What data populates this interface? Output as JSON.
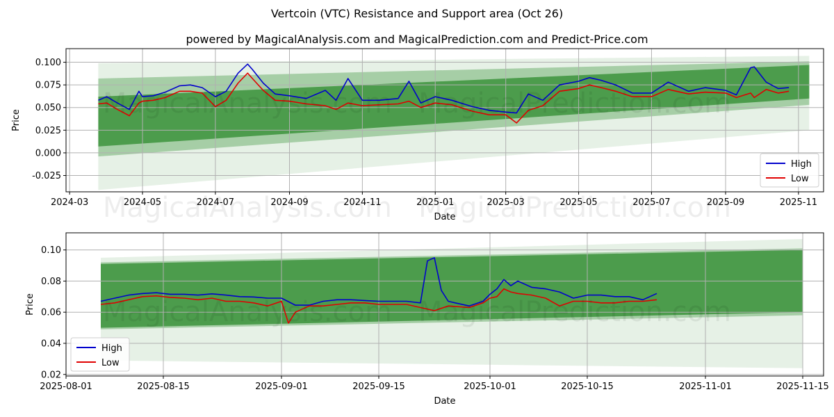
{
  "title": "Vertcoin (VTC) Resistance and Support area (Oct 26)",
  "subtitle": "powered by MagicalAnalysis.com and MagicalPrediction.com and Predict-Price.com",
  "watermark": "MagicalAnalysis.com   MagicalPrediction.com",
  "colors": {
    "high": "#0000cc",
    "low": "#e00000",
    "band": "#2e8b2e",
    "band_light": "#c8e6c8",
    "grid": "#b0b0b0"
  },
  "chart_data": [
    {
      "type": "line",
      "xlabel": "Date",
      "ylabel": "Price",
      "xlim": [
        "2024-02-27",
        "2025-11-22"
      ],
      "ylim": [
        -0.043,
        0.115
      ],
      "x_ticks": [
        "2024-03",
        "2024-05",
        "2024-07",
        "2024-09",
        "2024-11",
        "2025-01",
        "2025-03",
        "2025-05",
        "2025-07",
        "2025-09",
        "2025-11"
      ],
      "y_ticks": [
        "-0.025",
        "0.000",
        "0.025",
        "0.050",
        "0.075",
        "0.100"
      ],
      "legend": {
        "position": "lower-right",
        "entries": [
          "High",
          "Low"
        ]
      },
      "bands": {
        "x": [
          "2024-03-25",
          "2025-11-10"
        ],
        "outer_upper": [
          0.099,
          0.107
        ],
        "outer_lower": [
          -0.041,
          0.025
        ],
        "mid_upper": [
          0.082,
          0.101
        ],
        "mid_lower": [
          -0.004,
          0.053
        ],
        "inner_upper": [
          0.062,
          0.097
        ],
        "inner_lower": [
          0.007,
          0.06
        ]
      },
      "series": [
        {
          "name": "High",
          "x": [
            "2024-03-25",
            "2024-04-01",
            "2024-04-10",
            "2024-04-20",
            "2024-04-28",
            "2024-05-01",
            "2024-05-10",
            "2024-05-20",
            "2024-06-01",
            "2024-06-10",
            "2024-06-20",
            "2024-07-01",
            "2024-07-10",
            "2024-07-20",
            "2024-07-28",
            "2024-08-01",
            "2024-08-10",
            "2024-08-20",
            "2024-09-01",
            "2024-09-15",
            "2024-10-01",
            "2024-10-10",
            "2024-10-20",
            "2024-11-01",
            "2024-11-15",
            "2024-12-01",
            "2024-12-10",
            "2024-12-20",
            "2025-01-01",
            "2025-01-15",
            "2025-02-01",
            "2025-02-15",
            "2025-03-01",
            "2025-03-10",
            "2025-03-20",
            "2025-04-01",
            "2025-04-15",
            "2025-05-01",
            "2025-05-10",
            "2025-05-20",
            "2025-06-01",
            "2025-06-15",
            "2025-07-01",
            "2025-07-15",
            "2025-08-01",
            "2025-08-15",
            "2025-09-01",
            "2025-09-10",
            "2025-09-22",
            "2025-09-25",
            "2025-10-05",
            "2025-10-15",
            "2025-10-24"
          ],
          "values": [
            0.058,
            0.062,
            0.055,
            0.048,
            0.068,
            0.062,
            0.063,
            0.067,
            0.074,
            0.075,
            0.072,
            0.062,
            0.068,
            0.088,
            0.098,
            0.092,
            0.077,
            0.065,
            0.063,
            0.06,
            0.069,
            0.058,
            0.082,
            0.058,
            0.058,
            0.06,
            0.079,
            0.055,
            0.062,
            0.058,
            0.051,
            0.047,
            0.045,
            0.044,
            0.065,
            0.058,
            0.075,
            0.079,
            0.083,
            0.08,
            0.075,
            0.066,
            0.066,
            0.078,
            0.068,
            0.072,
            0.069,
            0.064,
            0.094,
            0.095,
            0.078,
            0.071,
            0.072
          ]
        },
        {
          "name": "Low",
          "x": [
            "2024-03-25",
            "2024-04-01",
            "2024-04-10",
            "2024-04-20",
            "2024-04-28",
            "2024-05-01",
            "2024-05-10",
            "2024-05-20",
            "2024-06-01",
            "2024-06-10",
            "2024-06-20",
            "2024-07-01",
            "2024-07-10",
            "2024-07-20",
            "2024-07-28",
            "2024-08-01",
            "2024-08-10",
            "2024-08-20",
            "2024-09-01",
            "2024-09-15",
            "2024-10-01",
            "2024-10-10",
            "2024-10-20",
            "2024-11-01",
            "2024-11-15",
            "2024-12-01",
            "2024-12-10",
            "2024-12-20",
            "2025-01-01",
            "2025-01-15",
            "2025-02-01",
            "2025-02-15",
            "2025-03-01",
            "2025-03-10",
            "2025-03-20",
            "2025-04-01",
            "2025-04-15",
            "2025-05-01",
            "2025-05-10",
            "2025-05-20",
            "2025-06-01",
            "2025-06-15",
            "2025-07-01",
            "2025-07-15",
            "2025-08-01",
            "2025-08-15",
            "2025-09-01",
            "2025-09-10",
            "2025-09-22",
            "2025-09-25",
            "2025-10-05",
            "2025-10-15",
            "2025-10-24"
          ],
          "values": [
            0.054,
            0.055,
            0.048,
            0.041,
            0.055,
            0.057,
            0.058,
            0.061,
            0.068,
            0.068,
            0.066,
            0.051,
            0.058,
            0.077,
            0.088,
            0.082,
            0.069,
            0.058,
            0.057,
            0.054,
            0.052,
            0.048,
            0.055,
            0.052,
            0.053,
            0.054,
            0.057,
            0.05,
            0.055,
            0.053,
            0.046,
            0.042,
            0.042,
            0.033,
            0.047,
            0.052,
            0.068,
            0.071,
            0.075,
            0.072,
            0.068,
            0.062,
            0.062,
            0.07,
            0.065,
            0.067,
            0.066,
            0.061,
            0.066,
            0.061,
            0.07,
            0.066,
            0.068
          ]
        }
      ]
    },
    {
      "type": "line",
      "xlabel": "Date",
      "ylabel": "Price",
      "xlim": [
        "2025-08-01",
        "2025-11-18"
      ],
      "ylim": [
        0.019,
        0.111
      ],
      "x_ticks": [
        "2025-08-01",
        "2025-08-15",
        "2025-09-01",
        "2025-09-15",
        "2025-10-01",
        "2025-10-15",
        "2025-11-01",
        "2025-11-15"
      ],
      "y_ticks": [
        "0.02",
        "0.04",
        "0.06",
        "0.08",
        "0.10"
      ],
      "legend": {
        "position": "lower-left",
        "entries": [
          "High",
          "Low"
        ]
      },
      "bands": {
        "x": [
          "2025-08-06",
          "2025-11-15"
        ],
        "outer_upper": [
          0.095,
          0.107
        ],
        "outer_lower": [
          0.029,
          0.024
        ],
        "mid_upper": [
          0.092,
          0.101
        ],
        "mid_lower": [
          0.049,
          0.058
        ],
        "inner_upper": [
          0.091,
          0.1
        ],
        "inner_lower": [
          0.05,
          0.06
        ]
      },
      "series": [
        {
          "name": "High",
          "x": [
            "2025-08-06",
            "2025-08-08",
            "2025-08-10",
            "2025-08-12",
            "2025-08-14",
            "2025-08-16",
            "2025-08-18",
            "2025-08-20",
            "2025-08-22",
            "2025-08-24",
            "2025-08-26",
            "2025-08-28",
            "2025-08-30",
            "2025-09-01",
            "2025-09-03",
            "2025-09-05",
            "2025-09-07",
            "2025-09-09",
            "2025-09-11",
            "2025-09-13",
            "2025-09-15",
            "2025-09-17",
            "2025-09-19",
            "2025-09-21",
            "2025-09-22",
            "2025-09-23",
            "2025-09-24",
            "2025-09-25",
            "2025-09-26",
            "2025-09-28",
            "2025-09-30",
            "2025-10-01",
            "2025-10-02",
            "2025-10-03",
            "2025-10-04",
            "2025-10-05",
            "2025-10-07",
            "2025-10-09",
            "2025-10-11",
            "2025-10-13",
            "2025-10-15",
            "2025-10-17",
            "2025-10-19",
            "2025-10-21",
            "2025-10-23",
            "2025-10-25"
          ],
          "values": [
            0.067,
            0.069,
            0.071,
            0.072,
            0.0725,
            0.0715,
            0.0715,
            0.071,
            0.0718,
            0.071,
            0.07,
            0.0698,
            0.069,
            0.069,
            0.0645,
            0.0645,
            0.067,
            0.068,
            0.068,
            0.0675,
            0.067,
            0.067,
            0.067,
            0.066,
            0.093,
            0.095,
            0.074,
            0.067,
            0.066,
            0.064,
            0.067,
            0.0715,
            0.075,
            0.081,
            0.077,
            0.08,
            0.076,
            0.075,
            0.073,
            0.069,
            0.071,
            0.071,
            0.07,
            0.07,
            0.068,
            0.072
          ]
        },
        {
          "name": "Low",
          "x": [
            "2025-08-06",
            "2025-08-08",
            "2025-08-10",
            "2025-08-12",
            "2025-08-14",
            "2025-08-16",
            "2025-08-18",
            "2025-08-20",
            "2025-08-22",
            "2025-08-24",
            "2025-08-26",
            "2025-08-28",
            "2025-08-30",
            "2025-09-01",
            "2025-09-02",
            "2025-09-03",
            "2025-09-05",
            "2025-09-07",
            "2025-09-09",
            "2025-09-11",
            "2025-09-13",
            "2025-09-15",
            "2025-09-17",
            "2025-09-19",
            "2025-09-21",
            "2025-09-23",
            "2025-09-25",
            "2025-09-28",
            "2025-09-30",
            "2025-10-01",
            "2025-10-02",
            "2025-10-03",
            "2025-10-04",
            "2025-10-05",
            "2025-10-07",
            "2025-10-09",
            "2025-10-11",
            "2025-10-13",
            "2025-10-15",
            "2025-10-17",
            "2025-10-19",
            "2025-10-21",
            "2025-10-23",
            "2025-10-25"
          ],
          "values": [
            0.065,
            0.066,
            0.068,
            0.07,
            0.0705,
            0.0695,
            0.069,
            0.068,
            0.069,
            0.067,
            0.067,
            0.066,
            0.064,
            0.067,
            0.053,
            0.06,
            0.064,
            0.064,
            0.065,
            0.066,
            0.066,
            0.065,
            0.065,
            0.065,
            0.063,
            0.061,
            0.064,
            0.063,
            0.066,
            0.069,
            0.07,
            0.075,
            0.073,
            0.072,
            0.071,
            0.069,
            0.064,
            0.067,
            0.067,
            0.066,
            0.066,
            0.067,
            0.067,
            0.068
          ]
        }
      ]
    }
  ]
}
